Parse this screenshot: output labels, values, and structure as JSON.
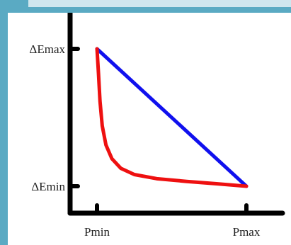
{
  "colors": {
    "frame": "#5aaac3",
    "panel": "#ffffff",
    "axis": "#000000",
    "linear_series": "#1010ee",
    "curve_series": "#ee1010"
  },
  "chart_data": {
    "type": "line",
    "xlabel": "",
    "ylabel": "",
    "x_ticks": [
      "Pmin",
      "Pmax"
    ],
    "y_ticks": [
      "ΔEmax",
      "ΔEmin"
    ],
    "xlim": [
      0,
      1
    ],
    "ylim": [
      0,
      1
    ],
    "grid": false,
    "legend": "none",
    "series": [
      {
        "points": [
          [
            0,
            1
          ],
          [
            1,
            0
          ]
        ]
      },
      {
        "points": [
          [
            0,
            1
          ],
          [
            0.01,
            0.82
          ],
          [
            0.02,
            0.62
          ],
          [
            0.035,
            0.44
          ],
          [
            0.06,
            0.3
          ],
          [
            0.1,
            0.2
          ],
          [
            0.16,
            0.13
          ],
          [
            0.25,
            0.085
          ],
          [
            0.4,
            0.055
          ],
          [
            0.6,
            0.035
          ],
          [
            0.8,
            0.018
          ],
          [
            1,
            0
          ]
        ]
      }
    ]
  }
}
